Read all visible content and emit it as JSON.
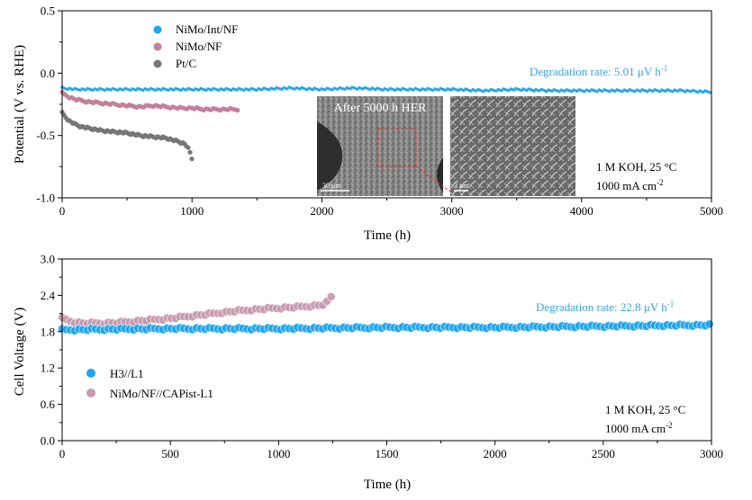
{
  "chart_data": [
    {
      "type": "scatter",
      "xlabel": "Time (h)",
      "ylabel": "Potential (V vs. RHE)",
      "xlim": [
        0,
        5000
      ],
      "ylim": [
        -1.0,
        0.5
      ],
      "xticks": [
        "0",
        "1000",
        "2000",
        "3000",
        "4000",
        "5000"
      ],
      "yticks": [
        "-1.0",
        "-0.5",
        "0.0",
        "0.5"
      ],
      "legend_position": "top-left",
      "series": [
        {
          "name": "NiMo/Int/NF",
          "color": "#1ea6f0",
          "x": [
            0,
            100,
            250,
            500,
            750,
            1000,
            1250,
            1500,
            1750,
            2000,
            2250,
            2500,
            2750,
            3000,
            3250,
            3500,
            3750,
            4000,
            4250,
            4500,
            4750,
            5000
          ],
          "y": [
            -0.12,
            -0.13,
            -0.13,
            -0.13,
            -0.13,
            -0.13,
            -0.13,
            -0.13,
            -0.12,
            -0.13,
            -0.12,
            -0.13,
            -0.13,
            -0.13,
            -0.14,
            -0.13,
            -0.14,
            -0.14,
            -0.14,
            -0.14,
            -0.14,
            -0.15
          ]
        },
        {
          "name": "NiMo/NF",
          "color": "#c47f9b",
          "x": [
            0,
            50,
            100,
            150,
            200,
            300,
            400,
            500,
            600,
            700,
            800,
            900,
            1000,
            1100,
            1200,
            1300,
            1350
          ],
          "y": [
            -0.16,
            -0.19,
            -0.21,
            -0.22,
            -0.23,
            -0.24,
            -0.25,
            -0.26,
            -0.27,
            -0.26,
            -0.27,
            -0.28,
            -0.28,
            -0.29,
            -0.29,
            -0.29,
            -0.29
          ]
        },
        {
          "name": "Pt/C",
          "color": "#777777",
          "x": [
            0,
            50,
            100,
            150,
            200,
            300,
            400,
            500,
            600,
            700,
            800,
            900,
            950,
            980,
            1000
          ],
          "y": [
            -0.32,
            -0.38,
            -0.41,
            -0.43,
            -0.44,
            -0.46,
            -0.47,
            -0.48,
            -0.5,
            -0.51,
            -0.52,
            -0.55,
            -0.57,
            -0.62,
            -0.69
          ]
        }
      ],
      "annotations": {
        "degradation": "Degradation rate: 5.01 μV h",
        "degradation_sup": "-1",
        "condition_1": "1 M KOH, 25 °C",
        "condition_2": "1000 mA cm",
        "condition_2_sup": "-2",
        "inset_title": "After 5000 h HER",
        "scale_left": "30 μm",
        "scale_right": "3 μm"
      }
    },
    {
      "type": "scatter",
      "xlabel": "Time (h)",
      "ylabel": "Cell Voltage (V)",
      "xlim": [
        0,
        3000
      ],
      "ylim": [
        0.0,
        3.0
      ],
      "xticks": [
        "0",
        "500",
        "1000",
        "1500",
        "2000",
        "2500",
        "3000"
      ],
      "yticks": [
        "0.0",
        "0.6",
        "1.2",
        "1.8",
        "2.4",
        "3.0"
      ],
      "legend_position": "middle-left",
      "series": [
        {
          "name": "H3//L1",
          "color": "#1ea6f0",
          "x": [
            0,
            250,
            500,
            750,
            1000,
            1250,
            1500,
            1750,
            2000,
            2250,
            2500,
            2750,
            3000
          ],
          "y": [
            1.83,
            1.84,
            1.85,
            1.85,
            1.85,
            1.86,
            1.87,
            1.87,
            1.87,
            1.88,
            1.89,
            1.9,
            1.91
          ]
        },
        {
          "name": "NiMo/NF//CAPist-L1",
          "color": "#c89aae",
          "x": [
            0,
            50,
            100,
            200,
            300,
            400,
            500,
            600,
            700,
            800,
            900,
            1000,
            1100,
            1200,
            1230,
            1260
          ],
          "y": [
            2.02,
            1.96,
            1.94,
            1.94,
            1.96,
            1.99,
            2.02,
            2.06,
            2.1,
            2.14,
            2.17,
            2.19,
            2.21,
            2.24,
            2.3,
            2.47
          ]
        }
      ],
      "annotations": {
        "degradation": "Degradation rate: 22.8 μV h",
        "degradation_sup": "-1",
        "condition_1": "1 M KOH, 25 °C",
        "condition_2": "1000 mA cm",
        "condition_2_sup": "-2"
      }
    }
  ]
}
